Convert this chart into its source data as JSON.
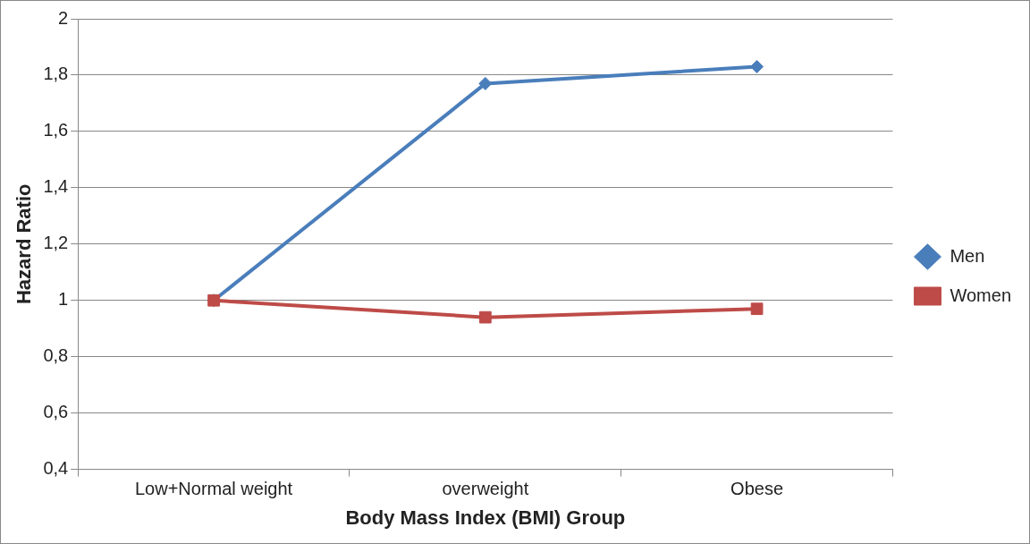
{
  "chart_data": {
    "type": "line",
    "xlabel": "Body Mass Index (BMI) Group",
    "ylabel": "Hazard Ratio",
    "categories": [
      "Low+Normal weight",
      "overweight",
      "Obese"
    ],
    "series": [
      {
        "name": "Men",
        "color": "#4a7ebb",
        "marker": "diamond",
        "values": [
          1,
          1.77,
          1.83
        ]
      },
      {
        "name": "Women",
        "color": "#be4b48",
        "marker": "square",
        "values": [
          1,
          0.94,
          0.97
        ]
      }
    ],
    "ylim": [
      0.4,
      2
    ],
    "yticks": [
      {
        "value": 0.4,
        "label": "0,4"
      },
      {
        "value": 0.6,
        "label": "0,6"
      },
      {
        "value": 0.8,
        "label": "0,8"
      },
      1,
      {
        "value": 1.2,
        "label": "1,2"
      },
      {
        "value": 1.4,
        "label": "1,4"
      },
      {
        "value": 1.6,
        "label": "1,6"
      },
      {
        "value": 1.8,
        "label": "1,8"
      },
      2
    ],
    "grid": "y",
    "legend": "right"
  }
}
